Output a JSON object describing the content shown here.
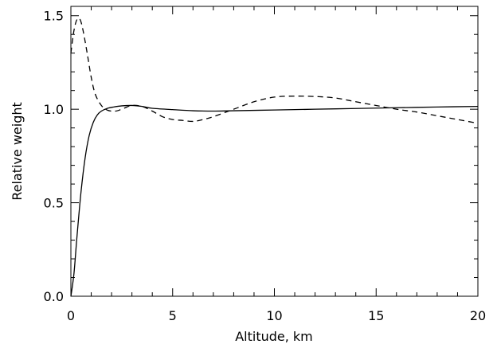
{
  "chart_data": {
    "type": "line",
    "title": "",
    "xlabel": "Altitude, km",
    "ylabel": "Relative weight",
    "xlim": [
      0,
      20
    ],
    "ylim": [
      0,
      1.55
    ],
    "x_ticks": [
      0,
      5,
      10,
      15,
      20
    ],
    "y_ticks": [
      0.0,
      0.5,
      1.0,
      1.5
    ],
    "x_tick_labels": [
      "0",
      "5",
      "10",
      "15",
      "20"
    ],
    "y_tick_labels": [
      "0.0",
      "0.5",
      "1.0",
      "1.5"
    ],
    "grid": false,
    "legend": "none",
    "series": [
      {
        "style": "solid",
        "color": "#000000",
        "x": [
          0,
          0.15,
          0.3,
          0.5,
          0.7,
          0.9,
          1.1,
          1.3,
          1.5,
          1.8,
          2.1,
          2.5,
          3.0,
          3.5,
          4.0,
          5.0,
          6.0,
          7.0,
          8.0,
          10.0,
          12.0,
          14.0,
          16.0,
          18.0,
          20.0
        ],
        "y": [
          0.0,
          0.12,
          0.32,
          0.56,
          0.74,
          0.86,
          0.93,
          0.97,
          0.99,
          1.005,
          1.012,
          1.018,
          1.02,
          1.015,
          1.005,
          0.998,
          0.992,
          0.99,
          0.992,
          0.996,
          1.0,
          1.004,
          1.008,
          1.012,
          1.015
        ]
      },
      {
        "style": "dashed",
        "color": "#000000",
        "x": [
          0,
          0.15,
          0.3,
          0.45,
          0.6,
          0.8,
          1.0,
          1.2,
          1.5,
          1.8,
          2.2,
          2.6,
          3.0,
          3.5,
          4.0,
          4.5,
          5.0,
          5.5,
          6.0,
          6.5,
          7.0,
          8.0,
          9.0,
          10.0,
          11.0,
          12.0,
          13.0,
          14.0,
          15.0,
          16.0,
          17.0,
          18.0,
          19.0,
          20.0
        ],
        "y": [
          1.3,
          1.42,
          1.48,
          1.48,
          1.42,
          1.3,
          1.17,
          1.08,
          1.02,
          0.995,
          0.99,
          1.005,
          1.02,
          1.015,
          0.99,
          0.96,
          0.945,
          0.94,
          0.935,
          0.945,
          0.96,
          1.0,
          1.04,
          1.065,
          1.07,
          1.068,
          1.06,
          1.04,
          1.02,
          1.0,
          0.985,
          0.965,
          0.945,
          0.925
        ]
      }
    ]
  }
}
